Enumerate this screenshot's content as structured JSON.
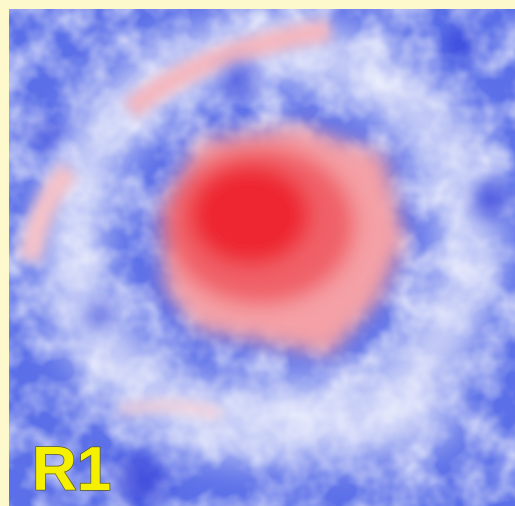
{
  "label": "R1"
}
